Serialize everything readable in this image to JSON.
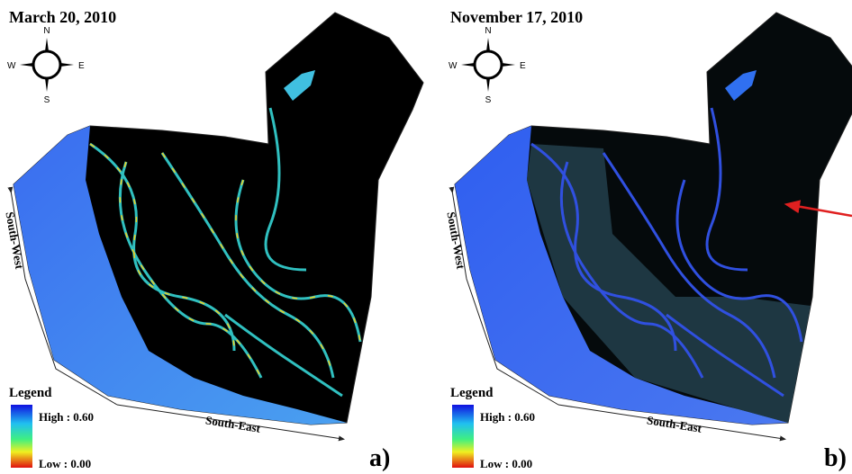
{
  "panels": [
    {
      "date": "March 20, 2010",
      "compass": {
        "n": "N",
        "e": "E",
        "s": "S",
        "w": "W"
      },
      "sides": {
        "south_west": "South-West",
        "south_east": "South-East"
      },
      "legend": {
        "title": "Legend",
        "high": "High : 0.60",
        "low": "Low : 0.00"
      },
      "label": "a)"
    },
    {
      "date": "November 17, 2010",
      "compass": {
        "n": "N",
        "e": "E",
        "s": "S",
        "w": "W"
      },
      "sides": {
        "south_west": "South-West",
        "south_east": "South-East"
      },
      "legend": {
        "title": "Legend",
        "high": "High : 0.60",
        "low": "Low : 0.00"
      },
      "label": "b)"
    }
  ]
}
